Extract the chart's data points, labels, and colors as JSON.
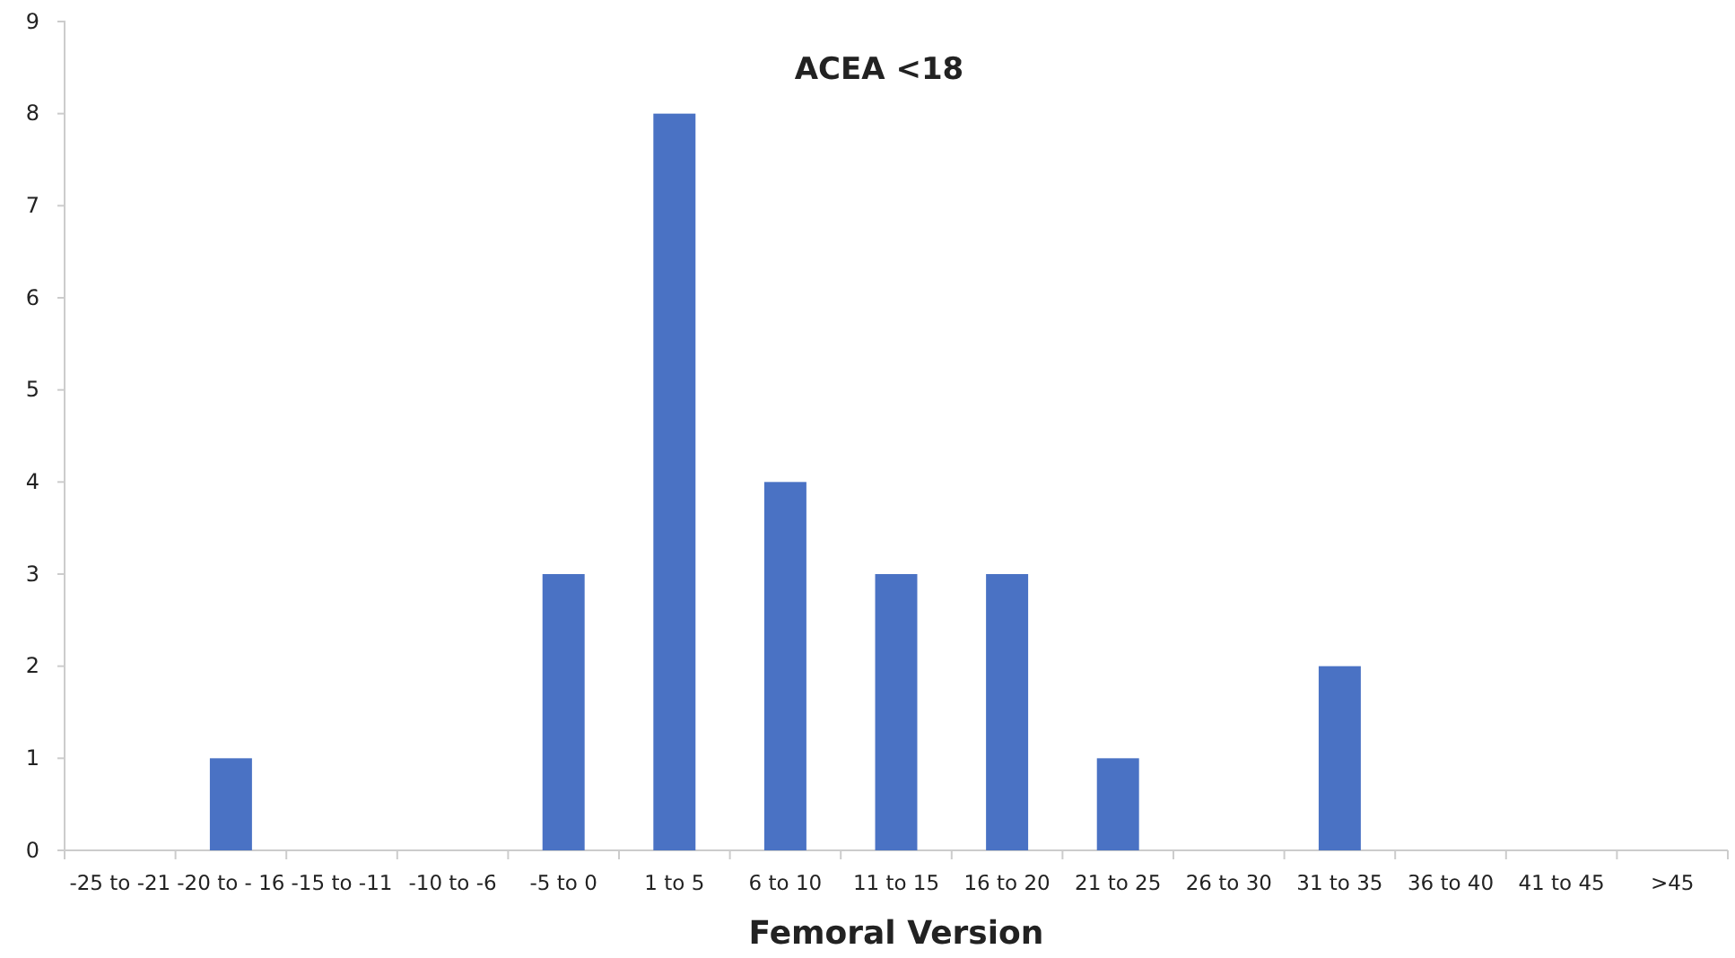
{
  "chart_data": {
    "type": "bar",
    "title": "ACEA <18",
    "xlabel": "Femoral Version",
    "categories": [
      "-25 to -21",
      "-20 to - 16",
      "-15 to -11",
      "-10 to -6",
      "-5 to 0",
      "1 to 5",
      "6 to 10",
      "11 to 15",
      "16 to 20",
      "21 to 25",
      "26 to 30",
      "31 to 35",
      "36 to 40",
      "41 to 45",
      ">45"
    ],
    "values": [
      0,
      1,
      0,
      0,
      3,
      8,
      4,
      3,
      3,
      1,
      0,
      2,
      0,
      0,
      0
    ],
    "color": "#4a72c4",
    "ylim": [
      0,
      9
    ],
    "yticks": [
      0,
      1,
      2,
      3,
      4,
      5,
      6,
      7,
      8,
      9
    ],
    "grid": false
  }
}
